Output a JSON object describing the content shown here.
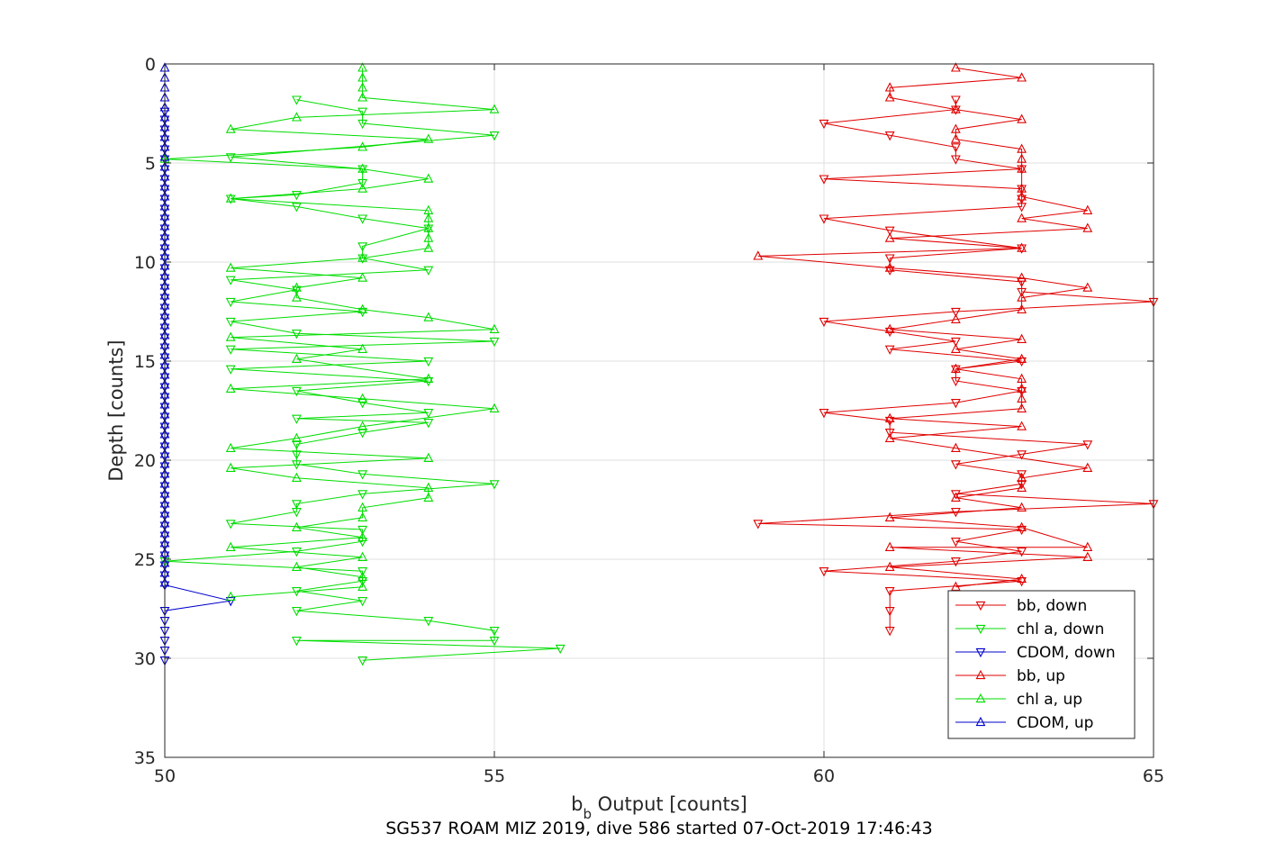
{
  "chart_data": {
    "type": "line",
    "xlabel": "b",
    "xlabel_subscript": "b",
    "xlabel_rest": " Output [counts]",
    "ylabel": "Depth [counts]",
    "caption": "SG537 ROAM MIZ 2019, dive 586 started 07-Oct-2019 17:46:43",
    "xlim": [
      50,
      65
    ],
    "ylim": [
      0,
      35
    ],
    "y_reversed": true,
    "grid": true,
    "xticks": [
      "50",
      "55",
      "60",
      "65"
    ],
    "yticks": [
      "0",
      "5",
      "10",
      "15",
      "20",
      "25",
      "30",
      "35"
    ],
    "legend_position": "bottom-right",
    "series": [
      {
        "name": "bb, down",
        "color": "#e00000",
        "marker": "triangle-down",
        "points": [
          [
            62,
            1.8
          ],
          [
            62,
            2.3
          ],
          [
            60,
            3
          ],
          [
            61,
            3.6
          ],
          [
            62,
            4.2
          ],
          [
            62,
            4.8
          ],
          [
            63,
            5.3
          ],
          [
            60,
            5.8
          ],
          [
            63,
            6.3
          ],
          [
            63,
            6.8
          ],
          [
            63,
            7.2
          ],
          [
            60,
            7.8
          ],
          [
            61,
            8.4
          ],
          [
            63,
            9.3
          ],
          [
            61,
            9.8
          ],
          [
            61,
            10.4
          ],
          [
            63,
            11
          ],
          [
            63,
            11.5
          ],
          [
            65,
            12
          ],
          [
            62,
            12.5
          ],
          [
            60,
            13
          ],
          [
            61,
            13.5
          ],
          [
            62,
            14
          ],
          [
            61,
            14.4
          ],
          [
            63,
            15
          ],
          [
            62,
            15.4
          ],
          [
            62,
            16
          ],
          [
            63,
            16.5
          ],
          [
            62,
            17.1
          ],
          [
            60,
            17.6
          ],
          [
            61,
            18
          ],
          [
            61,
            18.6
          ],
          [
            64,
            19.2
          ],
          [
            63,
            19.7
          ],
          [
            62,
            20.2
          ],
          [
            63,
            20.7
          ],
          [
            63,
            21.2
          ],
          [
            62,
            21.7
          ],
          [
            65,
            22.2
          ],
          [
            62,
            22.6
          ],
          [
            59,
            23.2
          ],
          [
            63,
            23.5
          ],
          [
            62,
            24.1
          ],
          [
            63,
            24.6
          ],
          [
            62,
            25.1
          ],
          [
            60,
            25.6
          ],
          [
            63,
            26.1
          ],
          [
            61,
            26.6
          ],
          [
            61,
            27.6
          ],
          [
            61,
            28.6
          ]
        ]
      },
      {
        "name": "chl a, down",
        "color": "#00dd00",
        "marker": "triangle-down",
        "points": [
          [
            52,
            1.8
          ],
          [
            53,
            2.4
          ],
          [
            53,
            3
          ],
          [
            55,
            3.6
          ],
          [
            51,
            4.7
          ],
          [
            53,
            5.3
          ],
          [
            53,
            6
          ],
          [
            52,
            6.6
          ],
          [
            51,
            6.8
          ],
          [
            52,
            7.2
          ],
          [
            53,
            7.8
          ],
          [
            54,
            8.3
          ],
          [
            53,
            9.2
          ],
          [
            53,
            9.8
          ],
          [
            54,
            10.4
          ],
          [
            51,
            10.9
          ],
          [
            52,
            11.4
          ],
          [
            51,
            12
          ],
          [
            53,
            12.5
          ],
          [
            51,
            13
          ],
          [
            52,
            13.6
          ],
          [
            55,
            14
          ],
          [
            51,
            14.4
          ],
          [
            54,
            15
          ],
          [
            51,
            15.4
          ],
          [
            54,
            16
          ],
          [
            52,
            16.5
          ],
          [
            53,
            17.1
          ],
          [
            54,
            17.6
          ],
          [
            52,
            17.9
          ],
          [
            54,
            18.1
          ],
          [
            53,
            18.6
          ],
          [
            52,
            19.2
          ],
          [
            52,
            19.7
          ],
          [
            52,
            20.2
          ],
          [
            53,
            20.7
          ],
          [
            55,
            21.2
          ],
          [
            53,
            21.7
          ],
          [
            52,
            22.2
          ],
          [
            52,
            22.6
          ],
          [
            51,
            23.2
          ],
          [
            53,
            23.5
          ],
          [
            53,
            24.1
          ],
          [
            52,
            24.6
          ],
          [
            50,
            25.1
          ],
          [
            53,
            25.6
          ],
          [
            53,
            26.1
          ],
          [
            52,
            26.6
          ],
          [
            53,
            27.1
          ],
          [
            52,
            27.6
          ],
          [
            54,
            28.1
          ],
          [
            55,
            28.6
          ],
          [
            55,
            29.1
          ],
          [
            52,
            29.1
          ],
          [
            56,
            29.5
          ],
          [
            53,
            30.1
          ]
        ]
      },
      {
        "name": "CDOM, down",
        "color": "#0000cc",
        "marker": "triangle-down",
        "points": [
          [
            50,
            2.4
          ],
          [
            50,
            2.8
          ],
          [
            50,
            3.3
          ],
          [
            50,
            3.8
          ],
          [
            50,
            4.3
          ],
          [
            50,
            4.8
          ],
          [
            50,
            5.3
          ],
          [
            50,
            5.8
          ],
          [
            50,
            6.3
          ],
          [
            50,
            6.8
          ],
          [
            50,
            7.3
          ],
          [
            50,
            7.8
          ],
          [
            50,
            8.3
          ],
          [
            50,
            8.8
          ],
          [
            50,
            9.3
          ],
          [
            50,
            9.8
          ],
          [
            50,
            10.3
          ],
          [
            50,
            10.8
          ],
          [
            50,
            11.3
          ],
          [
            50,
            11.8
          ],
          [
            50,
            12.3
          ],
          [
            50,
            12.8
          ],
          [
            50,
            13.3
          ],
          [
            50,
            13.8
          ],
          [
            50,
            14.3
          ],
          [
            50,
            14.8
          ],
          [
            50,
            15.3
          ],
          [
            50,
            15.8
          ],
          [
            50,
            16.3
          ],
          [
            50,
            16.8
          ],
          [
            50,
            17.3
          ],
          [
            50,
            17.8
          ],
          [
            50,
            18.3
          ],
          [
            50,
            18.8
          ],
          [
            50,
            19.3
          ],
          [
            50,
            19.8
          ],
          [
            50,
            20.3
          ],
          [
            50,
            20.8
          ],
          [
            50,
            21.3
          ],
          [
            50,
            21.8
          ],
          [
            50,
            22.3
          ],
          [
            50,
            22.8
          ],
          [
            50,
            23.3
          ],
          [
            50,
            23.8
          ],
          [
            50,
            24.3
          ],
          [
            50,
            24.8
          ],
          [
            50,
            25.3
          ],
          [
            50,
            25.8
          ],
          [
            50,
            26.3
          ],
          [
            51,
            27.1
          ],
          [
            50,
            27.6
          ],
          [
            50,
            28.1
          ],
          [
            50,
            28.6
          ],
          [
            50,
            29.1
          ],
          [
            50,
            29.6
          ],
          [
            50,
            30.1
          ]
        ]
      },
      {
        "name": "bb, up",
        "color": "#e00000",
        "marker": "triangle-up",
        "points": [
          [
            62,
            0.2
          ],
          [
            63,
            0.7
          ],
          [
            61,
            1.2
          ],
          [
            61,
            1.7
          ],
          [
            62,
            2.3
          ],
          [
            63,
            2.8
          ],
          [
            62,
            3.3
          ],
          [
            62,
            3.8
          ],
          [
            63,
            4.3
          ],
          [
            63,
            4.8
          ],
          [
            63,
            5.3
          ],
          [
            63,
            6.3
          ],
          [
            63,
            6.7
          ],
          [
            64,
            7.4
          ],
          [
            63,
            7.8
          ],
          [
            64,
            8.3
          ],
          [
            61,
            8.8
          ],
          [
            63,
            9.3
          ],
          [
            59,
            9.7
          ],
          [
            61,
            10.3
          ],
          [
            63,
            10.8
          ],
          [
            64,
            11.3
          ],
          [
            63,
            11.8
          ],
          [
            63,
            12.4
          ],
          [
            62,
            12.9
          ],
          [
            61,
            13.4
          ],
          [
            63,
            13.9
          ],
          [
            62,
            14.4
          ],
          [
            63,
            14.9
          ],
          [
            62,
            15.4
          ],
          [
            63,
            15.9
          ],
          [
            63,
            16.4
          ],
          [
            63,
            16.9
          ],
          [
            63,
            17.4
          ],
          [
            61,
            17.9
          ],
          [
            63,
            18.3
          ],
          [
            61,
            18.9
          ],
          [
            62,
            19.4
          ],
          [
            64,
            20.4
          ],
          [
            63,
            20.9
          ],
          [
            63,
            21.4
          ],
          [
            62,
            21.9
          ],
          [
            63,
            22.4
          ],
          [
            61,
            22.9
          ],
          [
            63,
            23.4
          ],
          [
            64,
            24.4
          ],
          [
            61,
            24.4
          ],
          [
            64,
            24.9
          ],
          [
            61,
            25.4
          ],
          [
            63,
            26
          ],
          [
            62,
            26.4
          ]
        ]
      },
      {
        "name": "chl a, up",
        "color": "#00dd00",
        "marker": "triangle-up",
        "points": [
          [
            53,
            0.2
          ],
          [
            53,
            0.7
          ],
          [
            53,
            1.2
          ],
          [
            53,
            1.7
          ],
          [
            55,
            2.3
          ],
          [
            52,
            2.7
          ],
          [
            51,
            3.3
          ],
          [
            54,
            3.8
          ],
          [
            53,
            4.2
          ],
          [
            50,
            4.8
          ],
          [
            53,
            5.3
          ],
          [
            54,
            5.8
          ],
          [
            53,
            6.3
          ],
          [
            51,
            6.8
          ],
          [
            54,
            7.4
          ],
          [
            54,
            7.8
          ],
          [
            54,
            8.3
          ],
          [
            54,
            8.8
          ],
          [
            54,
            9.3
          ],
          [
            53,
            9.8
          ],
          [
            51,
            10.3
          ],
          [
            53,
            10.8
          ],
          [
            52,
            11.3
          ],
          [
            52,
            11.8
          ],
          [
            53,
            12.4
          ],
          [
            54,
            12.8
          ],
          [
            55,
            13.4
          ],
          [
            51,
            13.8
          ],
          [
            53,
            14.4
          ],
          [
            52,
            14.9
          ],
          [
            54,
            15.9
          ],
          [
            51,
            16.4
          ],
          [
            53,
            16.9
          ],
          [
            55,
            17.4
          ],
          [
            53,
            18.3
          ],
          [
            52,
            18.9
          ],
          [
            51,
            19.4
          ],
          [
            54,
            19.9
          ],
          [
            51,
            20.4
          ],
          [
            52,
            20.9
          ],
          [
            54,
            21.4
          ],
          [
            54,
            21.9
          ],
          [
            53,
            22.4
          ],
          [
            53,
            22.9
          ],
          [
            52,
            23.4
          ],
          [
            53,
            23.9
          ],
          [
            51,
            24.4
          ],
          [
            53,
            24.9
          ],
          [
            52,
            25.4
          ],
          [
            53,
            25.9
          ],
          [
            53,
            26.4
          ],
          [
            51,
            26.9
          ]
        ]
      },
      {
        "name": "CDOM, up",
        "color": "#0000cc",
        "marker": "triangle-up",
        "points": [
          [
            50,
            0.2
          ],
          [
            50,
            0.7
          ],
          [
            50,
            1.2
          ],
          [
            50,
            1.7
          ],
          [
            50,
            2.2
          ],
          [
            50,
            2.7
          ],
          [
            50,
            3.2
          ],
          [
            50,
            3.7
          ],
          [
            50,
            4.2
          ],
          [
            50,
            4.7
          ],
          [
            50,
            5.2
          ],
          [
            50,
            5.7
          ],
          [
            50,
            6.2
          ],
          [
            50,
            6.7
          ],
          [
            50,
            7.2
          ],
          [
            50,
            7.7
          ],
          [
            50,
            8.2
          ],
          [
            50,
            8.7
          ],
          [
            50,
            9.2
          ],
          [
            50,
            9.7
          ],
          [
            50,
            10.2
          ],
          [
            50,
            10.7
          ],
          [
            50,
            11.2
          ],
          [
            50,
            11.7
          ],
          [
            50,
            12.2
          ],
          [
            50,
            12.7
          ],
          [
            50,
            13.2
          ],
          [
            50,
            13.7
          ],
          [
            50,
            14.2
          ],
          [
            50,
            14.7
          ],
          [
            50,
            15.2
          ],
          [
            50,
            15.7
          ],
          [
            50,
            16.2
          ],
          [
            50,
            16.7
          ],
          [
            50,
            17.2
          ],
          [
            50,
            17.7
          ],
          [
            50,
            18.2
          ],
          [
            50,
            18.7
          ],
          [
            50,
            19.2
          ],
          [
            50,
            19.7
          ],
          [
            50,
            20.2
          ],
          [
            50,
            20.7
          ],
          [
            50,
            21.2
          ],
          [
            50,
            21.7
          ],
          [
            50,
            22.2
          ],
          [
            50,
            22.7
          ],
          [
            50,
            23.2
          ],
          [
            50,
            23.7
          ],
          [
            50,
            24.2
          ],
          [
            50,
            24.7
          ],
          [
            50,
            25.2
          ],
          [
            50,
            25.7
          ],
          [
            50,
            26.2
          ]
        ]
      }
    ]
  }
}
